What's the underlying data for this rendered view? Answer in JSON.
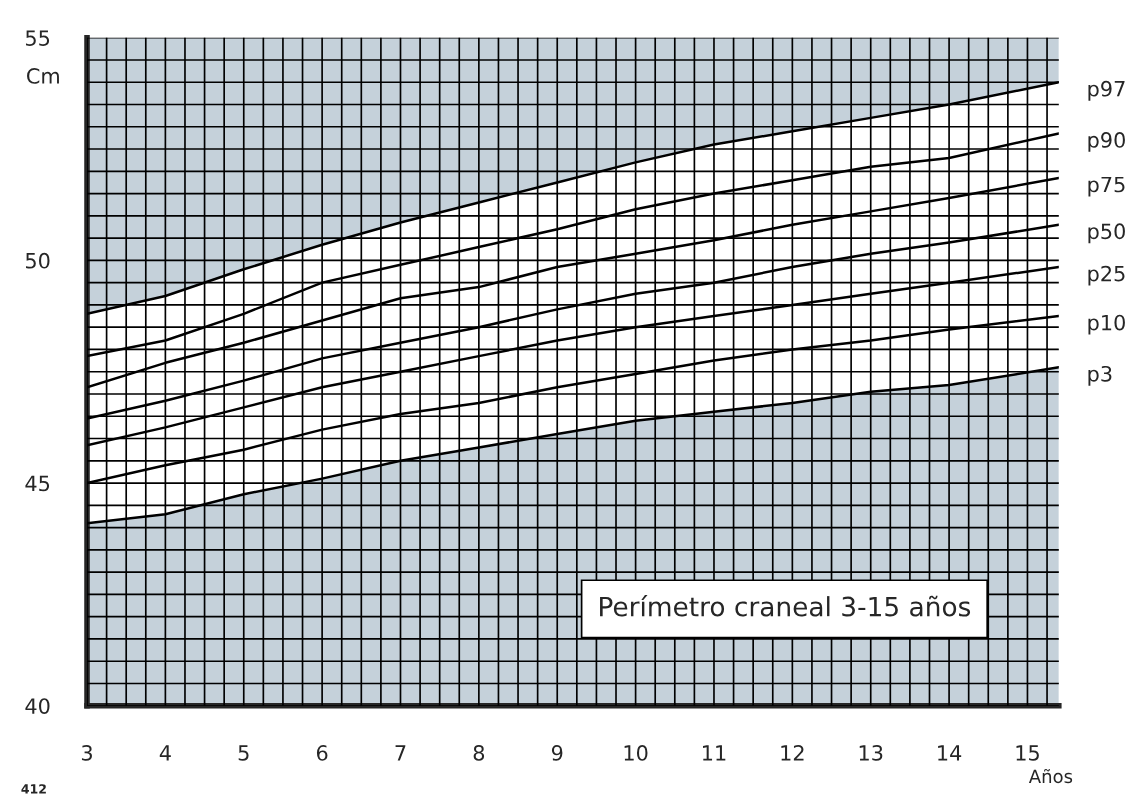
{
  "chart_data": {
    "type": "line",
    "title": "Perímetro craneal 3-15 años",
    "xlabel": "Años",
    "ylabel": "Cm",
    "x": [
      3,
      4,
      5,
      6,
      7,
      8,
      9,
      10,
      11,
      12,
      13,
      14,
      15.4
    ],
    "series": [
      {
        "name": "p97",
        "color": "#000000",
        "values": [
          48.8,
          49.2,
          49.8,
          50.35,
          50.85,
          51.3,
          51.75,
          52.2,
          52.6,
          52.9,
          53.2,
          53.5,
          54.0
        ]
      },
      {
        "name": "p90",
        "color": "#000000",
        "values": [
          47.85,
          48.2,
          48.8,
          49.5,
          49.9,
          50.3,
          50.7,
          51.15,
          51.5,
          51.8,
          52.1,
          52.3,
          52.85
        ]
      },
      {
        "name": "p75",
        "color": "#000000",
        "values": [
          47.15,
          47.7,
          48.15,
          48.65,
          49.15,
          49.4,
          49.85,
          50.15,
          50.45,
          50.8,
          51.1,
          51.4,
          51.85
        ]
      },
      {
        "name": "p50",
        "color": "#000000",
        "values": [
          46.45,
          46.85,
          47.3,
          47.8,
          48.15,
          48.5,
          48.9,
          49.25,
          49.5,
          49.85,
          50.15,
          50.4,
          50.8
        ]
      },
      {
        "name": "p25",
        "color": "#000000",
        "values": [
          45.85,
          46.25,
          46.7,
          47.15,
          47.5,
          47.85,
          48.2,
          48.5,
          48.75,
          49.0,
          49.25,
          49.5,
          49.85
        ]
      },
      {
        "name": "p10",
        "color": "#000000",
        "values": [
          45.0,
          45.4,
          45.75,
          46.2,
          46.55,
          46.8,
          47.15,
          47.45,
          47.75,
          48.0,
          48.2,
          48.45,
          48.75
        ]
      },
      {
        "name": "p3",
        "color": "#000000",
        "values": [
          44.1,
          44.3,
          44.75,
          45.1,
          45.5,
          45.8,
          46.1,
          46.4,
          46.6,
          46.8,
          47.05,
          47.2,
          47.6
        ]
      }
    ],
    "xlim": [
      3,
      15.4
    ],
    "ylim": [
      40,
      55
    ],
    "xticks": [
      3,
      4,
      5,
      6,
      7,
      8,
      9,
      10,
      11,
      12,
      13,
      14,
      15
    ],
    "yticks": [
      40,
      45,
      50,
      55
    ],
    "grid": true,
    "legend": false,
    "marker": "none",
    "line_style": "solid",
    "annotations": [
      "412"
    ]
  }
}
